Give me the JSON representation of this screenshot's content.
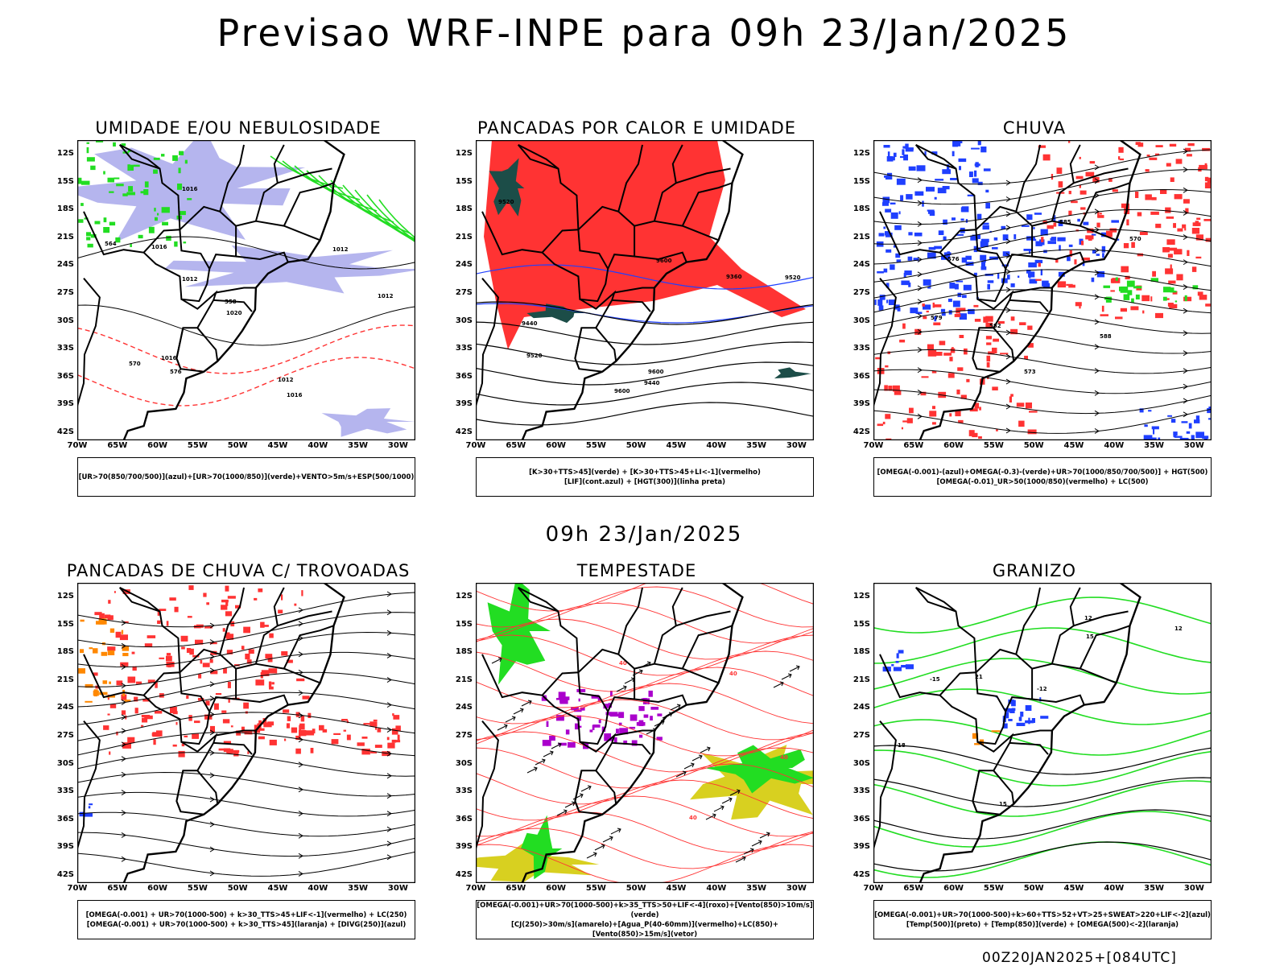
{
  "header": {
    "title": "Previsao WRF-INPE  para 09h 23/Jan/2025"
  },
  "middle": {
    "title": "09h 23/Jan/2025"
  },
  "footer": {
    "run": "00Z20JAN2025+[084UTC]"
  },
  "axes": {
    "lat_ticks": [
      "12S",
      "15S",
      "18S",
      "21S",
      "24S",
      "27S",
      "30S",
      "33S",
      "36S",
      "39S",
      "42S"
    ],
    "lon_ticks": [
      "70W",
      "65W",
      "60W",
      "55W",
      "50W",
      "45W",
      "40W",
      "35W",
      "30W"
    ]
  },
  "colors": {
    "blue": "#1f3fff",
    "green": "#22dd22",
    "red": "#ff3333",
    "orange": "#ff8800",
    "purple": "#aa00cc",
    "yellow": "#d8d020",
    "teal": "#1c4d48",
    "lavender": "#b5b5ee"
  },
  "panels": [
    {
      "id": "umidade",
      "title": "UMIDADE E/OU NEBULOSIDADE",
      "legend": [
        "[UR>70(850/700/500)](azul)+[UR>70(1000/850)](verde)+VENTO>5m/s+ESP(500/1000)"
      ],
      "contour_labels": [
        "1016",
        "1016",
        "1016",
        "1016",
        "1012",
        "1012",
        "1012",
        "1012",
        "1020",
        "576",
        "570",
        "564",
        "558"
      ]
    },
    {
      "id": "pancadas",
      "title": "PANCADAS POR CALOR E UMIDADE",
      "legend": [
        "[K>30+TTS>45](verde) + [K>30+TTS>45+LI<-1](vermelho)",
        "[LIF](cont.azul) + [HGT(300)](linha preta)"
      ],
      "contour_labels": [
        "9600",
        "9600",
        "9600",
        "9520",
        "9520",
        "9520",
        "9440",
        "9440",
        "9360"
      ]
    },
    {
      "id": "chuva",
      "title": "CHUVA",
      "legend": [
        "[OMEGA(-0.001)-(azul)+OMEGA(-0.3)-(verde)+UR>70(1000/850/700/500)] + HGT(500)",
        "[OMEGA(-0.01)_UR>50(1000/850)(vermelho) + LC(500)"
      ],
      "contour_labels": [
        "585",
        "588",
        "582",
        "579",
        "576",
        "573",
        "570"
      ]
    },
    {
      "id": "trovoadas",
      "title": "PANCADAS DE CHUVA C/ TROVOADAS",
      "legend": [
        "[OMEGA(-0.001) + UR>70(1000-500) + k>30_TTS>45+LIF<-1](vermelho) + LC(250)",
        "[OMEGA(-0.001) + UR>70(1000-500) + k>30_TTS>45](laranja) + [DIVG(250)](azul)"
      ],
      "contour_labels": []
    },
    {
      "id": "tempestade",
      "title": "TEMPESTADE",
      "legend": [
        "[OMEGA(-0.001)+UR>70(1000-500)+k>35_TTS>50+LIF<-4](roxo)+[Vento(850)>10m/s](verde)",
        "[CJ(250)>30m/s](amarelo)+[Agua_P(40-60mm)](vermelho)+LC(850)+[Vento(850)>15m/s](vetor)"
      ],
      "contour_labels": [
        "40",
        "40",
        "40",
        "40"
      ]
    },
    {
      "id": "granizo",
      "title": "GRANIZO",
      "legend": [
        "[OMEGA(-0.001)+UR>70(1000-500)+k>60+TTS>52+VT>25+SWEAT>220+LIF<-2](azul)",
        "[Temp(500)](preto) + [Temp(850)](verde) + [OMEGA(500)<-2](laranja)"
      ],
      "contour_labels": [
        "21",
        "18",
        "15",
        "15",
        "12",
        "12",
        "-15",
        "-12"
      ]
    }
  ]
}
